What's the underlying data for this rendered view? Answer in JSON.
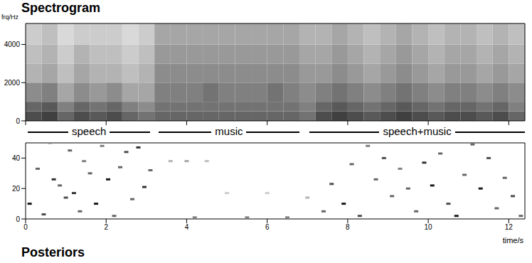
{
  "chart_data": [
    {
      "type": "heatmap",
      "title": "Spectrogram",
      "ylabel": "frq/Hz",
      "xlim": [
        0,
        12.4
      ],
      "ylim": [
        0,
        5100
      ],
      "xticks": [
        0,
        2,
        4,
        6,
        8,
        10,
        12
      ],
      "yticks": [
        0,
        2000,
        4000
      ],
      "tick_labels": "y",
      "zlim": [
        0,
        1
      ],
      "x_bins": [
        0,
        0.4,
        0.8,
        1.2,
        1.6,
        2,
        2.4,
        2.8,
        3.2,
        3.6,
        4,
        4.4,
        4.8,
        5.2,
        5.6,
        6,
        6.4,
        6.8,
        7.2,
        7.6,
        8,
        8.4,
        8.8,
        9.2,
        9.6,
        10,
        10.4,
        10.8,
        11.2,
        11.6,
        12,
        12.4
      ],
      "y_bins": [
        0,
        500,
        1000,
        2000,
        3000,
        4000,
        5100
      ],
      "cells": [
        [
          0.7,
          0.75,
          0.6,
          0.7,
          0.65,
          0.7,
          0.6,
          0.55,
          0.6,
          0.6,
          0.6,
          0.6,
          0.6,
          0.6,
          0.6,
          0.6,
          0.6,
          0.55,
          0.7,
          0.75,
          0.7,
          0.65,
          0.7,
          0.75,
          0.7,
          0.65,
          0.7,
          0.7,
          0.65,
          0.7,
          0.6
        ],
        [
          0.6,
          0.65,
          0.5,
          0.6,
          0.55,
          0.6,
          0.5,
          0.45,
          0.55,
          0.55,
          0.55,
          0.55,
          0.55,
          0.55,
          0.55,
          0.55,
          0.55,
          0.5,
          0.6,
          0.65,
          0.6,
          0.55,
          0.6,
          0.65,
          0.6,
          0.55,
          0.6,
          0.6,
          0.55,
          0.6,
          0.5
        ],
        [
          0.45,
          0.5,
          0.35,
          0.45,
          0.4,
          0.45,
          0.35,
          0.35,
          0.5,
          0.5,
          0.5,
          0.55,
          0.5,
          0.5,
          0.5,
          0.55,
          0.5,
          0.45,
          0.5,
          0.55,
          0.5,
          0.45,
          0.5,
          0.55,
          0.5,
          0.45,
          0.5,
          0.5,
          0.45,
          0.5,
          0.45
        ],
        [
          0.3,
          0.35,
          0.25,
          0.35,
          0.3,
          0.3,
          0.25,
          0.3,
          0.45,
          0.45,
          0.45,
          0.45,
          0.45,
          0.45,
          0.45,
          0.45,
          0.45,
          0.4,
          0.4,
          0.45,
          0.4,
          0.35,
          0.4,
          0.45,
          0.4,
          0.35,
          0.4,
          0.4,
          0.35,
          0.4,
          0.35
        ],
        [
          0.25,
          0.3,
          0.2,
          0.3,
          0.25,
          0.25,
          0.2,
          0.25,
          0.4,
          0.4,
          0.4,
          0.4,
          0.4,
          0.4,
          0.4,
          0.4,
          0.4,
          0.35,
          0.35,
          0.4,
          0.35,
          0.3,
          0.35,
          0.4,
          0.35,
          0.3,
          0.35,
          0.35,
          0.3,
          0.35,
          0.3
        ],
        [
          0.2,
          0.25,
          0.15,
          0.2,
          0.2,
          0.2,
          0.15,
          0.2,
          0.35,
          0.35,
          0.35,
          0.35,
          0.35,
          0.35,
          0.35,
          0.35,
          0.35,
          0.3,
          0.3,
          0.35,
          0.3,
          0.25,
          0.3,
          0.35,
          0.3,
          0.25,
          0.3,
          0.3,
          0.25,
          0.3,
          0.25
        ]
      ],
      "annotations": [
        {
          "text": "speech",
          "x": [
            0.05,
            3.1
          ]
        },
        {
          "text": "music",
          "x": [
            3.3,
            6.8
          ]
        },
        {
          "text": "speech+music",
          "x": [
            7.05,
            12.4
          ]
        }
      ]
    },
    {
      "type": "scatter",
      "title": "Posteriors",
      "xlabel": "time/s",
      "xlim": [
        0,
        12.4
      ],
      "ylim": [
        0,
        50
      ],
      "xticks": [
        0,
        2,
        4,
        6,
        8,
        10,
        12
      ],
      "yticks": [
        0,
        20,
        40
      ],
      "zlim": [
        0,
        1
      ],
      "x": [
        0.1,
        0.3,
        0.45,
        0.6,
        0.7,
        0.85,
        1.0,
        1.1,
        1.2,
        1.35,
        1.45,
        1.6,
        1.75,
        1.9,
        2.05,
        2.2,
        2.35,
        2.5,
        2.65,
        2.8,
        2.95,
        3.1,
        3.6,
        4.0,
        4.5,
        5.0,
        6.0,
        4.2,
        5.5,
        6.5,
        7.0,
        7.4,
        7.6,
        7.9,
        8.1,
        8.3,
        8.5,
        8.7,
        8.9,
        9.1,
        9.3,
        9.5,
        9.7,
        9.9,
        10.1,
        10.3,
        10.5,
        10.7,
        10.9,
        11.1,
        11.3,
        11.5,
        11.7,
        11.9,
        12.1,
        12.3
      ],
      "y": [
        10,
        33,
        3,
        50,
        26,
        22,
        14,
        45,
        17,
        5,
        38,
        30,
        10,
        48,
        26,
        2,
        34,
        44,
        13,
        47,
        21,
        32,
        38,
        38,
        38,
        17,
        17,
        1,
        1,
        1,
        14,
        5,
        23,
        10,
        36,
        2,
        48,
        26,
        40,
        15,
        33,
        20,
        5,
        37,
        22,
        43,
        10,
        2,
        29,
        49,
        20,
        40,
        7,
        27,
        15,
        2
      ],
      "values": [
        0.9,
        0.6,
        0.7,
        0.5,
        0.8,
        0.6,
        0.7,
        0.6,
        0.8,
        0.6,
        0.5,
        0.6,
        0.9,
        0.5,
        0.9,
        0.6,
        0.6,
        0.7,
        0.6,
        0.8,
        0.8,
        0.6,
        0.3,
        0.35,
        0.25,
        0.2,
        0.2,
        0.5,
        0.5,
        0.5,
        0.3,
        0.6,
        0.7,
        0.9,
        0.6,
        0.7,
        0.5,
        0.6,
        0.7,
        0.6,
        0.5,
        0.6,
        0.6,
        0.8,
        0.9,
        0.6,
        0.7,
        0.9,
        0.6,
        0.6,
        0.9,
        0.7,
        0.6,
        0.6,
        0.7,
        0.6
      ]
    }
  ]
}
